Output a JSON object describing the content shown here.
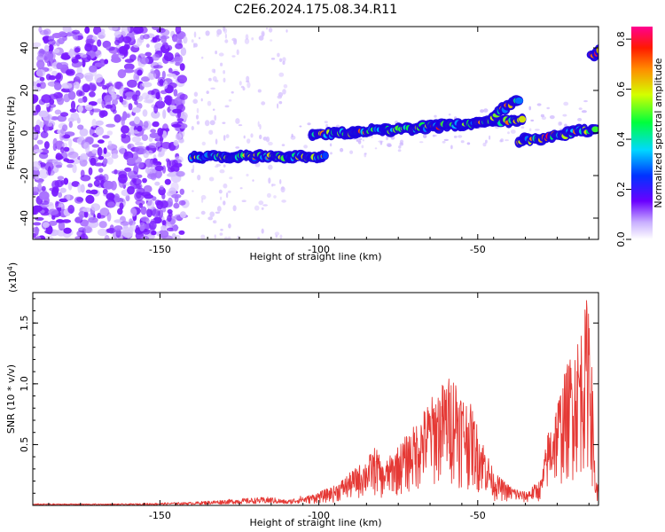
{
  "title": "C2E6.2024.175.08.34.R11",
  "chart_data": [
    {
      "type": "heatmap",
      "xlabel": "Height of straight line (km)",
      "ylabel": "Frequency (Hz)",
      "xlim": [
        -190,
        -12
      ],
      "ylim": [
        -50,
        50
      ],
      "xticks": [
        -150,
        -100,
        -50
      ],
      "yticks": [
        -40,
        -20,
        0,
        20,
        40
      ],
      "colorbar": {
        "label": "Normalized spectral amplitude",
        "range": [
          0,
          0.85
        ],
        "ticks": [
          0.0,
          0.2,
          0.4,
          0.6,
          0.8
        ]
      },
      "features": [
        {
          "segment": "noise-region",
          "x": [
            -190,
            -142
          ],
          "y": [
            -50,
            50
          ],
          "amplitude": 0.08
        },
        {
          "segment": "trace-a",
          "x": [
            -140,
            -98
          ],
          "y": [
            -11,
            -11
          ],
          "amplitude": 0.45
        },
        {
          "segment": "trace-b",
          "x": [
            -102,
            -36
          ],
          "y": [
            -1,
            6
          ],
          "amplitude": 0.55
        },
        {
          "segment": "trace-c",
          "x": [
            -45,
            -37
          ],
          "y": [
            8,
            16
          ],
          "amplitude": 0.55
        },
        {
          "segment": "trace-d",
          "x": [
            -37,
            -13
          ],
          "y": [
            -4,
            2
          ],
          "amplitude": 0.6
        },
        {
          "segment": "trace-e",
          "x": [
            -14,
            -12
          ],
          "y": [
            36,
            38
          ],
          "amplitude": 0.65
        }
      ]
    },
    {
      "type": "line",
      "xlabel": "Height of straight line (km)",
      "ylabel": "SNR (10 * v/v)",
      "y_multiplier": "(x10",
      "y_multiplier_exp": "4",
      "xlim": [
        -190,
        -12
      ],
      "ylim": [
        0,
        1.75
      ],
      "xticks": [
        -150,
        -100,
        -50
      ],
      "yticks": [
        0.5,
        1.0,
        1.5
      ],
      "color": "#e53935",
      "series": [
        {
          "x": [
            -190,
            -160,
            -140,
            -125,
            -115,
            -110,
            -105,
            -100,
            -95,
            -90,
            -85,
            -82,
            -80,
            -75,
            -70,
            -65,
            -60,
            -57,
            -55,
            -52,
            -50,
            -47,
            -45,
            -40,
            -35,
            -30,
            -28,
            -25,
            -22,
            -20,
            -18,
            -16,
            -15,
            -14,
            -13,
            -12
          ],
          "y": [
            0.01,
            0.01,
            0.02,
            0.04,
            0.05,
            0.03,
            0.06,
            0.1,
            0.15,
            0.25,
            0.35,
            0.45,
            0.3,
            0.45,
            0.6,
            0.8,
            0.95,
            1.0,
            0.85,
            0.75,
            0.6,
            0.4,
            0.25,
            0.15,
            0.1,
            0.2,
            0.55,
            0.8,
            1.05,
            1.2,
            1.3,
            1.5,
            1.75,
            1.0,
            0.2,
            0.15
          ]
        }
      ]
    }
  ]
}
